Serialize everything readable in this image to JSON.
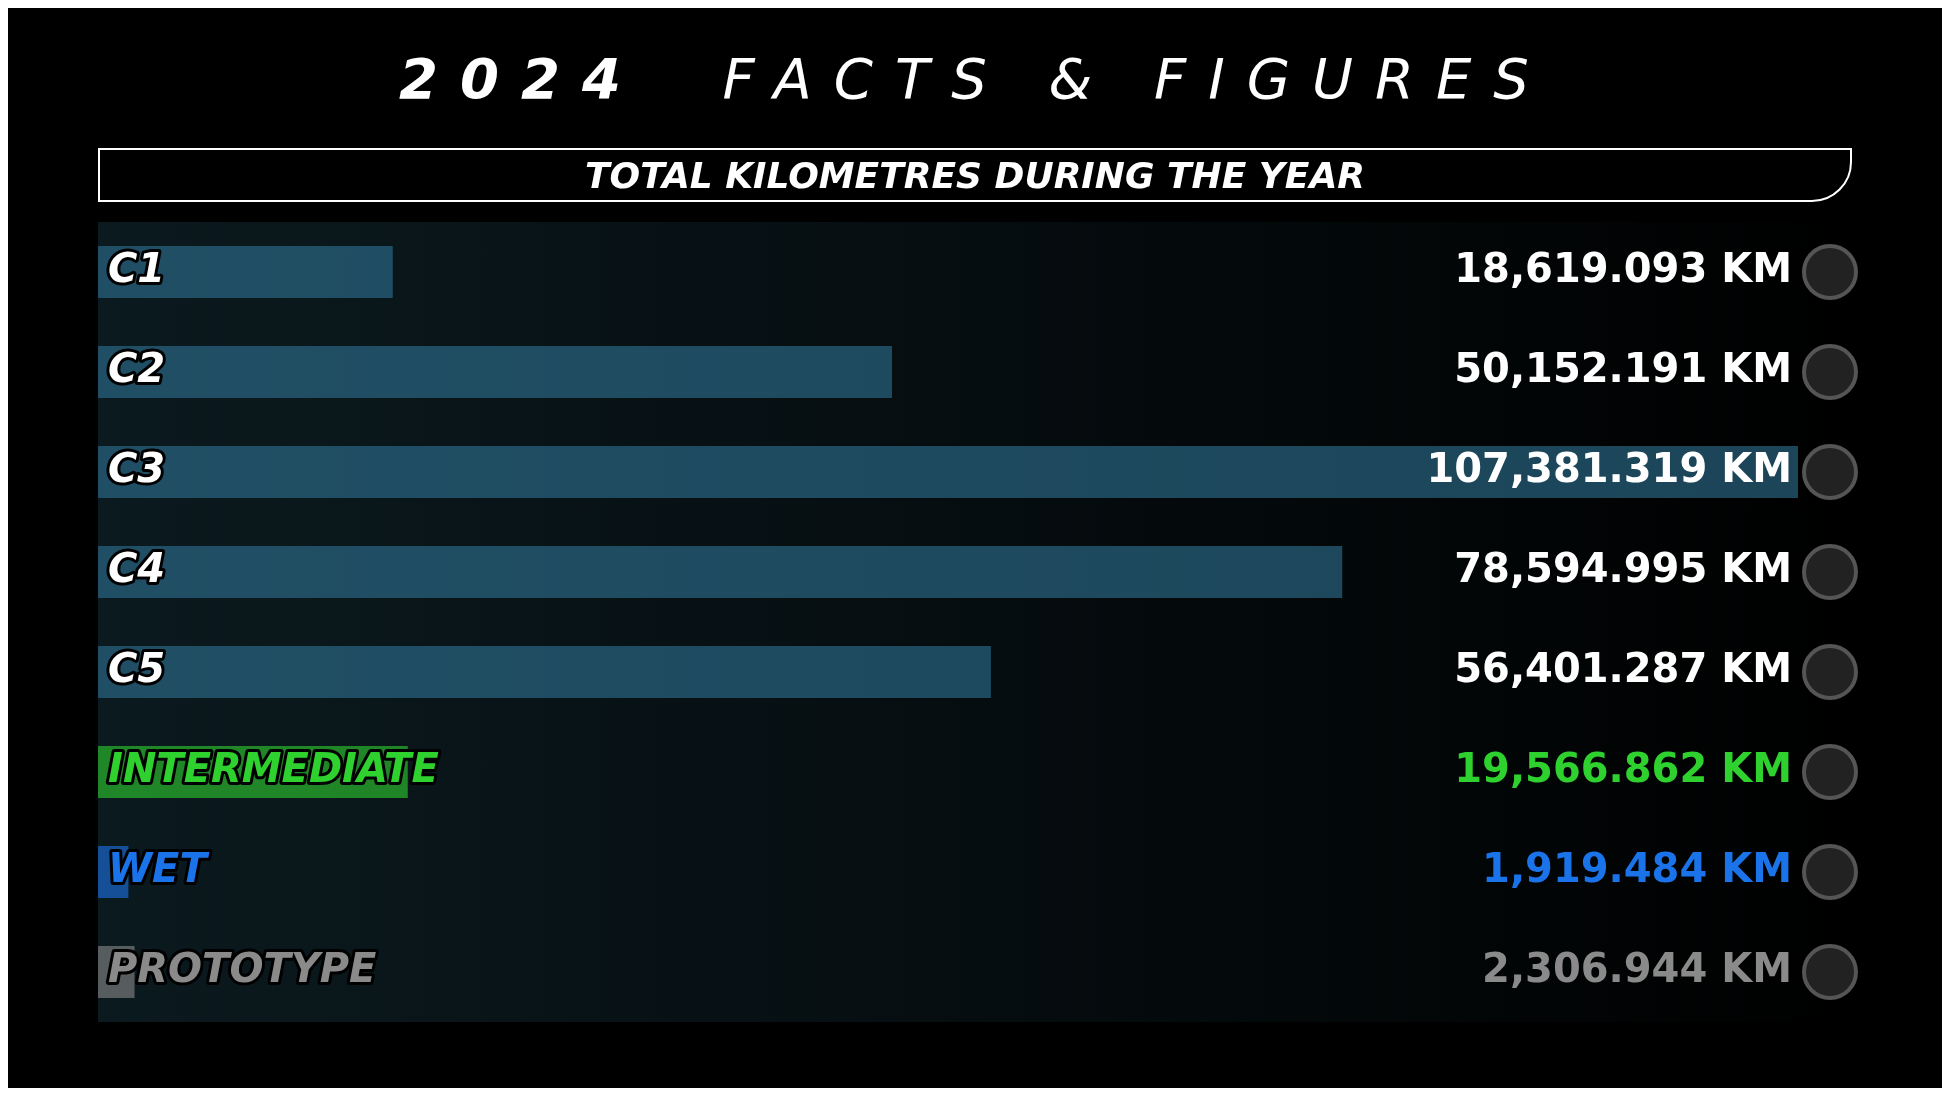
{
  "chart_data": {
    "type": "bar",
    "orientation": "horizontal",
    "title": "2024 FACTS & FIGURES",
    "subtitle": "TOTAL KILOMETRES DURING THE YEAR",
    "categories": [
      "C1",
      "C2",
      "C3",
      "C4",
      "C5",
      "INTERMEDIATE",
      "WET",
      "PROTOTYPE"
    ],
    "values": [
      18619.093,
      50152.191,
      107381.319,
      78594.995,
      56401.287,
      19566.862,
      1919.484,
      2306.944
    ],
    "colors": [
      "#2f7394",
      "#2f7394",
      "#2f7394",
      "#2f7394",
      "#2f7394",
      "#2fd12f",
      "#1a73e8",
      "#8a8a8a"
    ],
    "value_labels": [
      "18,619.093 KM",
      "50,152.191 KM",
      "107,381.319 KM",
      "78,594.995 KM",
      "56,401.287 KM",
      "19,566.862 KM",
      "1,919.484 KM",
      "2,306.944 KM"
    ],
    "legend": false
  }
}
